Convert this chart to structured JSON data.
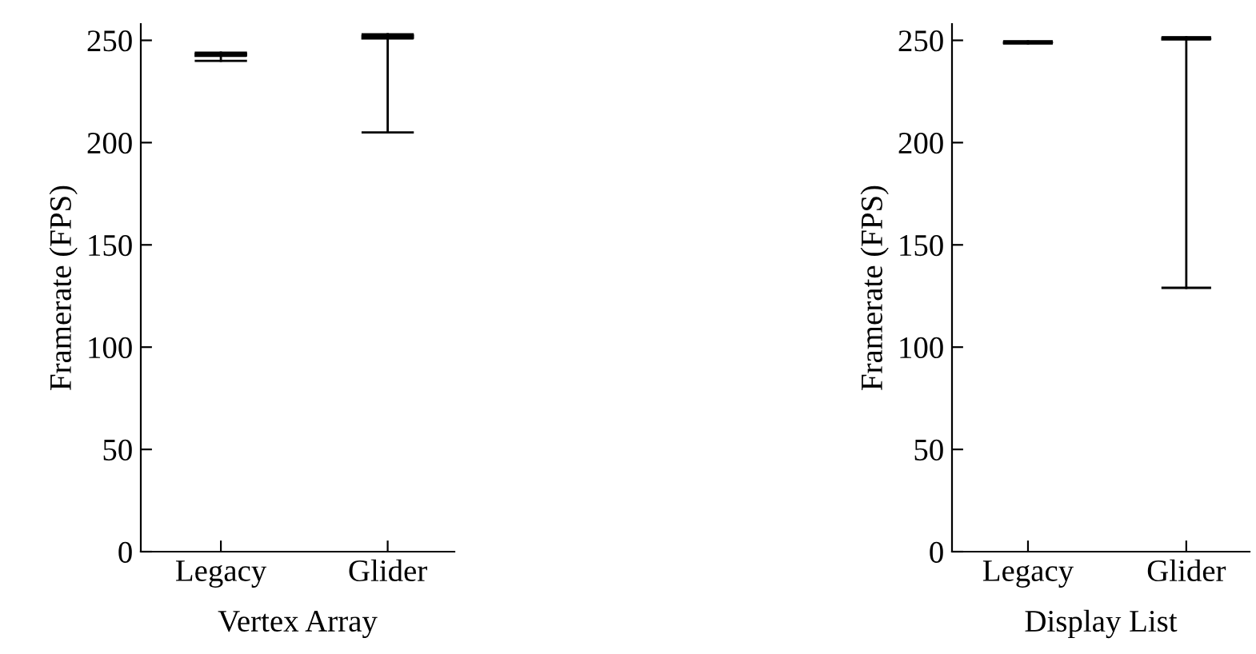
{
  "chart_data": [
    {
      "type": "box",
      "categories": [
        "Legacy",
        "Glider"
      ],
      "xlabel": "Vertex Array",
      "ylabel": "Framerate (FPS)",
      "ylim": [
        0,
        258
      ],
      "yticks": [
        0,
        50,
        100,
        150,
        200,
        250
      ],
      "grid": false,
      "boxes": [
        {
          "low": 240,
          "q1": 242.5,
          "median": 243,
          "q3": 243.5,
          "high": 244
        },
        {
          "low": 205,
          "q1": 251,
          "median": 252,
          "q3": 252.5,
          "high": 253
        }
      ]
    },
    {
      "type": "box",
      "categories": [
        "Legacy",
        "Glider"
      ],
      "xlabel": "Display List",
      "ylabel": "Framerate (FPS)",
      "ylim": [
        0,
        258
      ],
      "yticks": [
        0,
        50,
        100,
        150,
        200,
        250
      ],
      "grid": false,
      "boxes": [
        {
          "low": 248.5,
          "q1": 248.8,
          "median": 249,
          "q3": 249.2,
          "high": 249.5
        },
        {
          "low": 129,
          "q1": 250.5,
          "median": 251,
          "q3": 251.2,
          "high": 251.5
        }
      ]
    }
  ]
}
